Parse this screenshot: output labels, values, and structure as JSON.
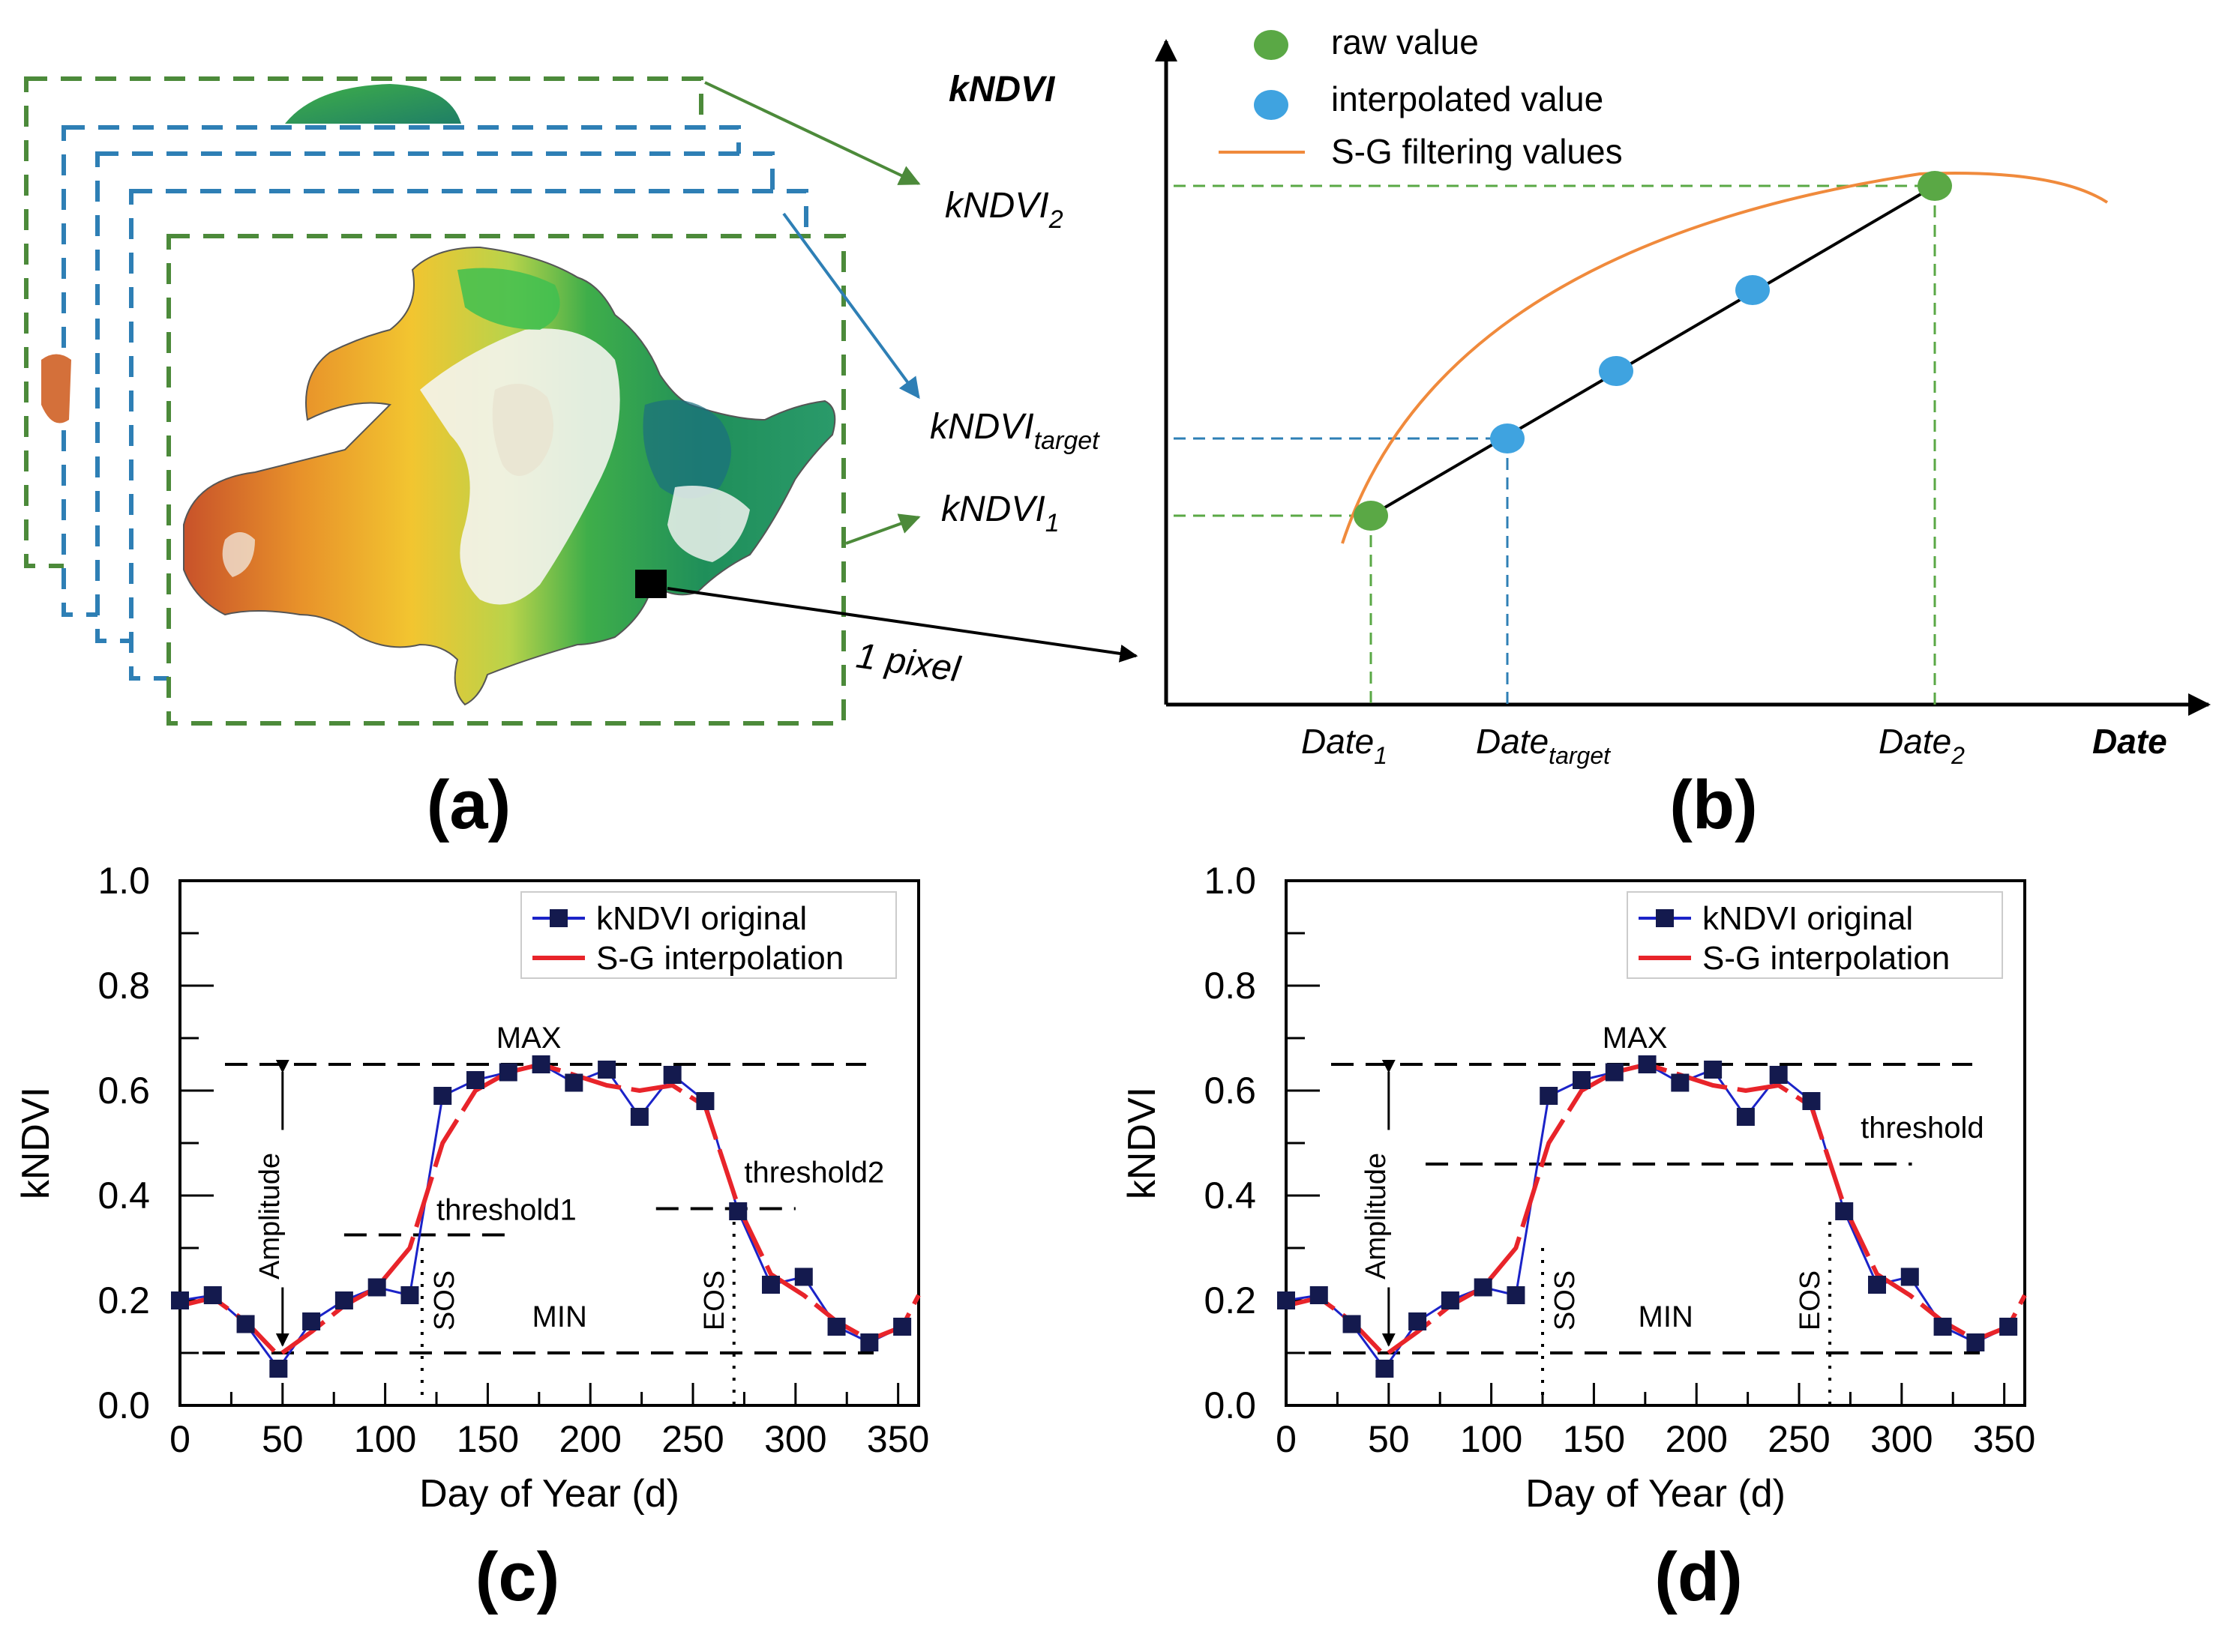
{
  "panel_a": {
    "label": "(a)",
    "kndvi_main": "kNDVI",
    "kndvi2_base": "kNDVI",
    "kndvi2_sub": "2",
    "kndvit_base": "kNDVI",
    "kndvit_sub": "target",
    "kndvi1_base": "kNDVI",
    "kndvi1_sub": "1",
    "pixel_label": "1 pixel"
  },
  "panel_b": {
    "label": "(b)",
    "legend": {
      "raw": "raw value",
      "interp": "interpolated value",
      "sg": "S-G filtering values"
    },
    "xaxis_title": "Date",
    "date1_base": "Date",
    "date1_sub": "1",
    "datet_base": "Date",
    "datet_sub": "target",
    "date2_base": "Date",
    "date2_sub": "2",
    "colors": {
      "raw": "#5aa845",
      "interp": "#3fa3e0",
      "sg": "#f08a3c",
      "line": "#000000"
    }
  },
  "chart_data": [
    {
      "type": "line",
      "panel": "(c)",
      "xlabel": "Day of Year (d)",
      "ylabel": "kNDVI",
      "xlim": [
        0,
        360
      ],
      "ylim": [
        0.0,
        1.0
      ],
      "xticks": [
        "0",
        "50",
        "100",
        "150",
        "200",
        "250",
        "300",
        "350"
      ],
      "yticks": [
        "0.0",
        "0.2",
        "0.4",
        "0.6",
        "0.8",
        "1.0"
      ],
      "legend": [
        "kNDVI original",
        "S-G interpolation"
      ],
      "series": [
        {
          "name": "kNDVI original",
          "x": [
            0,
            16,
            32,
            48,
            64,
            80,
            96,
            112,
            128,
            144,
            160,
            176,
            192,
            208,
            224,
            240,
            256,
            272,
            288,
            304,
            320,
            336,
            352
          ],
          "y": [
            0.2,
            0.21,
            0.155,
            0.07,
            0.16,
            0.2,
            0.225,
            0.21,
            0.59,
            0.62,
            0.635,
            0.65,
            0.615,
            0.64,
            0.55,
            0.63,
            0.58,
            0.37,
            0.23,
            0.245,
            0.15,
            0.12,
            0.15
          ]
        },
        {
          "name": "S-G interpolation",
          "x": [
            0,
            16,
            32,
            48,
            64,
            80,
            96,
            112,
            128,
            144,
            160,
            176,
            192,
            208,
            224,
            240,
            256,
            272,
            288,
            304,
            320,
            336,
            352,
            360
          ],
          "y": [
            0.19,
            0.205,
            0.16,
            0.095,
            0.14,
            0.19,
            0.225,
            0.3,
            0.5,
            0.6,
            0.635,
            0.65,
            0.63,
            0.61,
            0.6,
            0.61,
            0.57,
            0.38,
            0.25,
            0.21,
            0.16,
            0.125,
            0.15,
            0.21
          ]
        }
      ],
      "annotations": {
        "max": "MAX",
        "min": "MIN",
        "amplitude": "Amplitude",
        "threshold1": "threshold1",
        "threshold2": "threshold2",
        "sos": "SOS",
        "eos": "EOS",
        "max_value": 0.65,
        "min_value": 0.1,
        "threshold1_value": 0.325,
        "threshold2_value": 0.375,
        "sos_day": 118,
        "eos_day": 270
      }
    },
    {
      "type": "line",
      "panel": "(d)",
      "xlabel": "Day of Year (d)",
      "ylabel": "kNDVI",
      "xlim": [
        0,
        360
      ],
      "ylim": [
        0.0,
        1.0
      ],
      "xticks": [
        "0",
        "50",
        "100",
        "150",
        "200",
        "250",
        "300",
        "350"
      ],
      "yticks": [
        "0.0",
        "0.2",
        "0.4",
        "0.6",
        "0.8",
        "1.0"
      ],
      "legend": [
        "kNDVI original",
        "S-G interpolation"
      ],
      "series": [
        {
          "name": "kNDVI original",
          "x": [
            0,
            16,
            32,
            48,
            64,
            80,
            96,
            112,
            128,
            144,
            160,
            176,
            192,
            208,
            224,
            240,
            256,
            272,
            288,
            304,
            320,
            336,
            352
          ],
          "y": [
            0.2,
            0.21,
            0.155,
            0.07,
            0.16,
            0.2,
            0.225,
            0.21,
            0.59,
            0.62,
            0.635,
            0.65,
            0.615,
            0.64,
            0.55,
            0.63,
            0.58,
            0.37,
            0.23,
            0.245,
            0.15,
            0.12,
            0.15
          ]
        },
        {
          "name": "S-G interpolation",
          "x": [
            0,
            16,
            32,
            48,
            64,
            80,
            96,
            112,
            128,
            144,
            160,
            176,
            192,
            208,
            224,
            240,
            256,
            272,
            288,
            304,
            320,
            336,
            352,
            360
          ],
          "y": [
            0.19,
            0.205,
            0.16,
            0.095,
            0.14,
            0.19,
            0.225,
            0.3,
            0.5,
            0.6,
            0.635,
            0.65,
            0.63,
            0.61,
            0.6,
            0.61,
            0.57,
            0.38,
            0.25,
            0.21,
            0.16,
            0.125,
            0.15,
            0.21
          ]
        }
      ],
      "annotations": {
        "max": "MAX",
        "min": "MIN",
        "amplitude": "Amplitude",
        "threshold": "threshold",
        "sos": "SOS",
        "eos": "EOS",
        "max_value": 0.65,
        "min_value": 0.1,
        "threshold_value": 0.46,
        "sos_day": 125,
        "eos_day": 265
      }
    }
  ]
}
